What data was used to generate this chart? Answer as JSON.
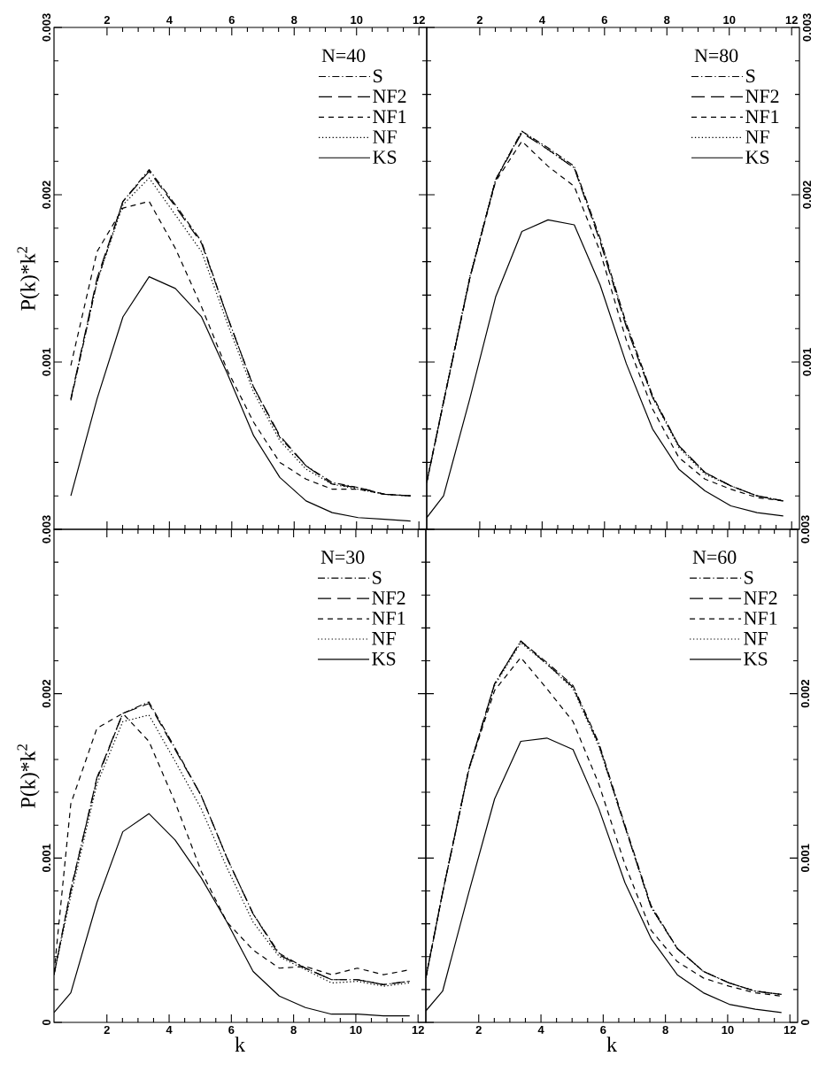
{
  "chart_data": [
    {
      "type": "line",
      "legend_title": "N=40",
      "ylabel": "P(k)*k$^{2}$",
      "legend": "top right",
      "tick_labels": "y",
      "x": [
        0.84,
        1.68,
        2.51,
        3.35,
        4.19,
        5.03,
        5.86,
        6.7,
        7.54,
        8.38,
        9.22,
        10.05,
        10.89,
        11.73
      ],
      "xlim": [
        0.3,
        12.25
      ],
      "x2lim": [
        0.3,
        12.25
      ],
      "x2ticks": [
        2,
        4,
        6,
        8,
        10,
        12
      ],
      "ylim": [
        0,
        0.003
      ],
      "yticks": [
        {
          "value": 0,
          "label": null
        },
        0.001,
        0.002,
        0.003
      ],
      "series": [
        {
          "name": "S",
          "color": "#000000",
          "line_style": "dashdot",
          "values": [
            0.00077,
            0.00148,
            0.00196,
            0.00215,
            0.00194,
            0.00172,
            0.00127,
            0.00085,
            0.00055,
            0.00038,
            0.00028,
            0.00025,
            0.00021,
            0.0002
          ]
        },
        {
          "name": "NF2",
          "color": "#000000",
          "line_style": "longdash",
          "values": [
            0.00078,
            0.0015,
            0.00196,
            0.00214,
            0.00193,
            0.00171,
            0.00127,
            0.00085,
            0.00056,
            0.00038,
            0.00027,
            0.00025,
            0.00021,
            0.0002
          ]
        },
        {
          "name": "NF1",
          "color": "#000000",
          "line_style": "dashed",
          "values": [
            0.00098,
            0.00166,
            0.00192,
            0.00196,
            0.00168,
            0.00133,
            0.00095,
            0.00064,
            0.0004,
            0.0003,
            0.00024,
            0.00024,
            0.00021,
            0.0002
          ]
        },
        {
          "name": "NF",
          "color": "#000000",
          "line_style": "dotted",
          "values": [
            0.00078,
            0.00148,
            0.00194,
            0.0021,
            0.00188,
            0.00166,
            0.00123,
            0.00082,
            0.00053,
            0.00036,
            0.00027,
            0.00024,
            0.00021,
            0.0002
          ]
        },
        {
          "name": "KS",
          "color": "#000000",
          "line_style": "solid",
          "values": [
            0.0002,
            0.00078,
            0.00127,
            0.00151,
            0.00144,
            0.00127,
            0.00093,
            0.00056,
            0.00031,
            0.00017,
            0.0001,
            7e-05,
            6e-05,
            5e-05
          ]
        }
      ]
    },
    {
      "type": "line",
      "legend_title": "N=80",
      "legend": "top right",
      "tick_labels": "y",
      "x": [
        0.3,
        0.84,
        1.68,
        2.51,
        3.35,
        4.19,
        5.03,
        5.86,
        6.7,
        7.54,
        8.38,
        9.22,
        10.05,
        10.89,
        11.73
      ],
      "xlim": [
        0.3,
        12.25
      ],
      "x2lim": [
        0.3,
        12.25
      ],
      "x2ticks": [
        2,
        4,
        6,
        8,
        10,
        12
      ],
      "ylim": [
        0,
        0.003
      ],
      "yticks": [
        {
          "value": 0,
          "label": null
        },
        0.001,
        0.002,
        0.003
      ],
      "series": [
        {
          "name": "S",
          "color": "#000000",
          "line_style": "dashdot",
          "values": [
            0.00028,
            0.00076,
            0.0015,
            0.00209,
            0.00238,
            0.00228,
            0.00217,
            0.00174,
            0.00123,
            0.0008,
            0.0005,
            0.00034,
            0.00026,
            0.0002,
            0.00017
          ]
        },
        {
          "name": "NF2",
          "color": "#000000",
          "line_style": "longdash",
          "values": [
            0.00028,
            0.00076,
            0.0015,
            0.00209,
            0.00237,
            0.00227,
            0.00216,
            0.00172,
            0.00121,
            0.00079,
            0.0005,
            0.00034,
            0.00026,
            0.0002,
            0.00017
          ]
        },
        {
          "name": "NF1",
          "color": "#000000",
          "line_style": "dashed",
          "values": [
            0.00028,
            0.00076,
            0.0015,
            0.00208,
            0.00232,
            0.00217,
            0.00205,
            0.00166,
            0.00113,
            0.00072,
            0.00043,
            0.0003,
            0.00024,
            0.00019,
            0.00017
          ]
        },
        {
          "name": "NF",
          "color": "#000000",
          "line_style": "dotted",
          "values": [
            0.00028,
            0.00077,
            0.00151,
            0.00209,
            0.00238,
            0.00227,
            0.00216,
            0.00173,
            0.00122,
            0.00079,
            0.00049,
            0.00033,
            0.00026,
            0.0002,
            0.00017
          ]
        },
        {
          "name": "KS",
          "color": "#000000",
          "line_style": "solid",
          "values": [
            7e-05,
            0.0002,
            0.00078,
            0.00139,
            0.00178,
            0.00185,
            0.00182,
            0.00146,
            0.00099,
            0.0006,
            0.00036,
            0.00023,
            0.00014,
            0.0001,
            8e-05
          ]
        }
      ]
    },
    {
      "type": "line",
      "legend_title": "N=30",
      "xlabel": "k",
      "ylabel": "P(k)*k$^{2}$",
      "legend": "top right",
      "x": [
        0.3,
        0.84,
        1.68,
        2.51,
        3.35,
        4.19,
        5.03,
        5.86,
        6.7,
        7.54,
        8.38,
        9.22,
        10.05,
        10.89,
        11.73
      ],
      "xlim": [
        0.3,
        12.25
      ],
      "xticks": [
        2,
        4,
        6,
        8,
        10,
        12
      ],
      "ylim": [
        0,
        0.003
      ],
      "yticks": [
        0,
        0.001,
        0.002,
        0.003
      ],
      "series": [
        {
          "name": "S",
          "color": "#000000",
          "line_style": "dashdot",
          "values": [
            0.00029,
            0.00081,
            0.00148,
            0.00188,
            0.00195,
            0.00167,
            0.00138,
            0.001,
            0.00066,
            0.00042,
            0.00033,
            0.00026,
            0.00026,
            0.00023,
            0.00025
          ]
        },
        {
          "name": "NF2",
          "color": "#000000",
          "line_style": "longdash",
          "values": [
            0.00029,
            0.0008,
            0.00149,
            0.00188,
            0.00194,
            0.00166,
            0.00138,
            0.001,
            0.00066,
            0.00041,
            0.00033,
            0.00026,
            0.00026,
            0.00023,
            0.00025
          ]
        },
        {
          "name": "NF1",
          "color": "#000000",
          "line_style": "dashed",
          "values": [
            0.0003,
            0.00133,
            0.00179,
            0.00188,
            0.00171,
            0.00134,
            0.00092,
            0.00061,
            0.00044,
            0.00033,
            0.00034,
            0.00029,
            0.00033,
            0.00029,
            0.00032
          ]
        },
        {
          "name": "NF",
          "color": "#000000",
          "line_style": "dotted",
          "values": [
            0.00029,
            0.00077,
            0.00145,
            0.00183,
            0.00187,
            0.00159,
            0.0013,
            0.00094,
            0.00061,
            0.0004,
            0.00032,
            0.00024,
            0.00025,
            0.00022,
            0.00024
          ]
        },
        {
          "name": "KS",
          "color": "#000000",
          "line_style": "solid",
          "values": [
            6e-05,
            0.00018,
            0.00073,
            0.00116,
            0.00127,
            0.00111,
            0.00088,
            0.00061,
            0.00031,
            0.00016,
            9e-05,
            5e-05,
            5e-05,
            4e-05,
            4e-05
          ]
        }
      ]
    },
    {
      "type": "line",
      "legend_title": "N=60",
      "xlabel": "k",
      "legend": "top right",
      "x": [
        0.3,
        0.84,
        1.68,
        2.51,
        3.35,
        4.19,
        5.03,
        5.86,
        6.7,
        7.54,
        8.38,
        9.22,
        10.05,
        10.89,
        11.73
      ],
      "xlim": [
        0.3,
        12.25
      ],
      "xticks": [
        2,
        4,
        6,
        8,
        10,
        12
      ],
      "ylim": [
        0,
        0.003
      ],
      "yticks": [
        0,
        0.001,
        0.002,
        0.003
      ],
      "series": [
        {
          "name": "S",
          "color": "#000000",
          "line_style": "dashdot",
          "values": [
            0.00027,
            0.00079,
            0.00154,
            0.00206,
            0.00232,
            0.00219,
            0.00205,
            0.0017,
            0.0012,
            0.00071,
            0.00045,
            0.00031,
            0.00024,
            0.00019,
            0.00017
          ]
        },
        {
          "name": "NF2",
          "color": "#000000",
          "line_style": "longdash",
          "values": [
            0.00027,
            0.00079,
            0.00154,
            0.00206,
            0.00232,
            0.00218,
            0.00204,
            0.00169,
            0.00119,
            0.0007,
            0.00045,
            0.00031,
            0.00024,
            0.00019,
            0.00017
          ]
        },
        {
          "name": "NF1",
          "color": "#000000",
          "line_style": "dashed",
          "values": [
            0.00027,
            0.00079,
            0.00154,
            0.00202,
            0.00222,
            0.00203,
            0.00183,
            0.00145,
            0.00096,
            0.00056,
            0.00037,
            0.00027,
            0.00022,
            0.00018,
            0.00016
          ]
        },
        {
          "name": "NF",
          "color": "#000000",
          "line_style": "dotted",
          "values": [
            0.00027,
            0.00079,
            0.00153,
            0.00205,
            0.00231,
            0.00218,
            0.00203,
            0.00168,
            0.00119,
            0.0007,
            0.00045,
            0.00031,
            0.00024,
            0.00019,
            0.00017
          ]
        },
        {
          "name": "KS",
          "color": "#000000",
          "line_style": "solid",
          "values": [
            7e-05,
            0.00019,
            0.00079,
            0.00136,
            0.00171,
            0.00173,
            0.00166,
            0.0013,
            0.00085,
            0.00051,
            0.00029,
            0.00018,
            0.00011,
            8e-05,
            6e-05
          ]
        }
      ]
    }
  ]
}
